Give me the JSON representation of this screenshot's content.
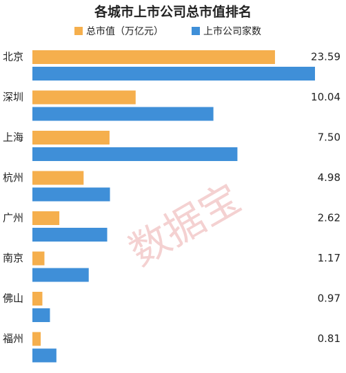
{
  "chart_data": {
    "type": "hbar",
    "title": "各城市上市公司总市值排名",
    "watermark": "数据宝",
    "categories": [
      "北京",
      "深圳",
      "上海",
      "杭州",
      "广州",
      "南京",
      "佛山",
      "福州"
    ],
    "series": [
      {
        "name": "总市值（万亿元）",
        "color": "#f5af4d",
        "values": [
          23.59,
          10.04,
          7.5,
          4.98,
          2.62,
          1.17,
          0.97,
          0.81
        ],
        "value_labels": [
          "23.59",
          "10.04",
          "7.50",
          "4.98",
          "2.62",
          "1.17",
          "0.97",
          "0.81"
        ]
      },
      {
        "name": "上市公司家数",
        "color": "#3f8fd8",
        "axis": "x2",
        "values": [
          306,
          196,
          222,
          84,
          81,
          61,
          19,
          26
        ]
      }
    ],
    "xlim": [
      0,
      27.48
    ],
    "x2lim": [
      0,
      306
    ]
  }
}
